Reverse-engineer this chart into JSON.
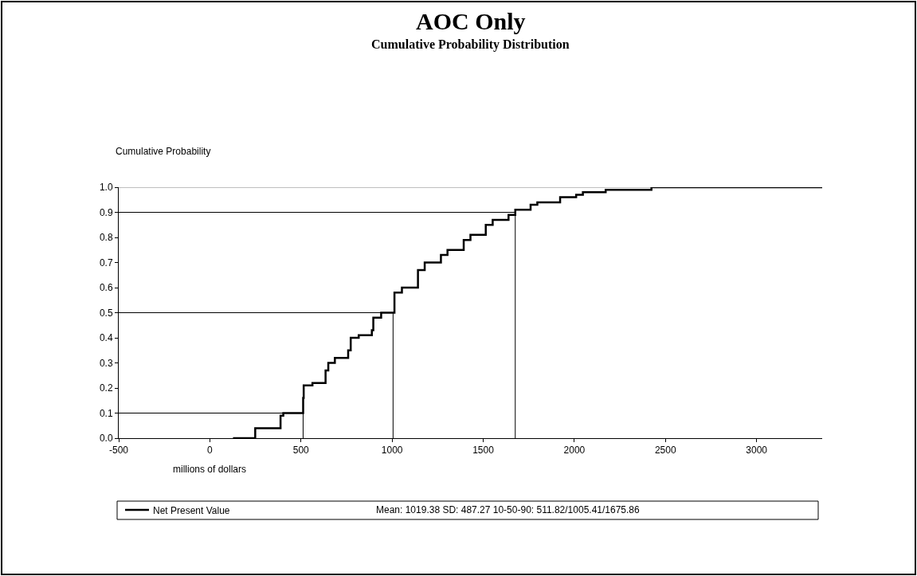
{
  "chart_data": {
    "type": "step",
    "title": "AOC Only",
    "subtitle": "Cumulative Probability Distribution",
    "xlabel": "millions of dollars",
    "ylabel": "Cumulative Probability",
    "annotations": [
      "Mean: 1019.38 SD: 487.27 10-50-90: 511.82/1005.41/1675.86"
    ],
    "series": [
      {
        "name": "Net Present Value",
        "color": "#000000",
        "x": [
          127,
          249,
          388,
          403,
          446,
          512,
          515,
          563,
          635,
          650,
          686,
          759,
          773,
          817,
          889,
          897,
          940,
          1013,
          1054,
          1142,
          1179,
          1268,
          1304,
          1393,
          1430,
          1514,
          1552,
          1639,
          1676,
          1760,
          1797,
          1922,
          2010,
          2047,
          2172,
          2290,
          2423,
          2541,
          3360
        ],
        "values": [
          0.0,
          0.04,
          0.09,
          0.1,
          0.1,
          0.16,
          0.21,
          0.22,
          0.27,
          0.3,
          0.32,
          0.35,
          0.4,
          0.41,
          0.43,
          0.48,
          0.5,
          0.58,
          0.6,
          0.67,
          0.7,
          0.73,
          0.75,
          0.79,
          0.81,
          0.85,
          0.87,
          0.89,
          0.91,
          0.93,
          0.94,
          0.96,
          0.97,
          0.98,
          0.99,
          0.99,
          1.0,
          1.0,
          1.0
        ]
      }
    ],
    "ref_lines": [
      {
        "axis": "y",
        "value": 0.1,
        "color": "#000000"
      },
      {
        "axis": "y",
        "value": 0.5,
        "color": "#000000"
      },
      {
        "axis": "y",
        "value": 0.9,
        "color": "#000000"
      },
      {
        "axis": "x",
        "value": 511.82,
        "color": "#000000"
      },
      {
        "axis": "x",
        "value": 1005.41,
        "color": "#000000"
      },
      {
        "axis": "x",
        "value": 1675.86,
        "color": "#000000"
      },
      {
        "axis": "y",
        "value": 1.0,
        "color": "#808080"
      }
    ],
    "xlim": [
      -500,
      3360
    ],
    "ylim": [
      0,
      1
    ],
    "xticks": [
      -500,
      0,
      500,
      1000,
      1500,
      2000,
      2500,
      3000
    ],
    "yticks": [
      {
        "value": 0,
        "label": "0.0"
      },
      {
        "value": 0.1,
        "label": "0.1"
      },
      {
        "value": 0.2,
        "label": "0.2"
      },
      {
        "value": 0.3,
        "label": "0.3"
      },
      {
        "value": 0.4,
        "label": "0.4"
      },
      {
        "value": 0.5,
        "label": "0.5"
      },
      {
        "value": 0.6,
        "label": "0.6"
      },
      {
        "value": 0.7,
        "label": "0.7"
      },
      {
        "value": 0.8,
        "label": "0.8"
      },
      {
        "value": 0.9,
        "label": "0.9"
      },
      {
        "value": 1,
        "label": "1.0"
      }
    ],
    "grid": false,
    "legend": "bottom",
    "marker": "none",
    "line_style": "solid"
  }
}
